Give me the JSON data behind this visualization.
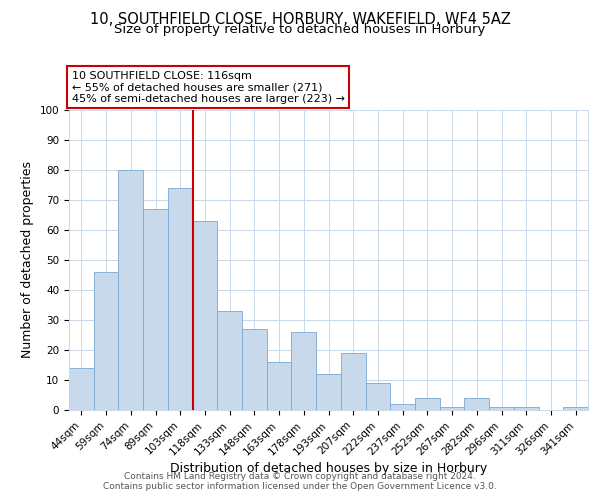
{
  "title": "10, SOUTHFIELD CLOSE, HORBURY, WAKEFIELD, WF4 5AZ",
  "subtitle": "Size of property relative to detached houses in Horbury",
  "xlabel": "Distribution of detached houses by size in Horbury",
  "ylabel": "Number of detached properties",
  "bar_labels": [
    "44sqm",
    "59sqm",
    "74sqm",
    "89sqm",
    "103sqm",
    "118sqm",
    "133sqm",
    "148sqm",
    "163sqm",
    "178sqm",
    "193sqm",
    "207sqm",
    "222sqm",
    "237sqm",
    "252sqm",
    "267sqm",
    "282sqm",
    "296sqm",
    "311sqm",
    "326sqm",
    "341sqm"
  ],
  "bar_values": [
    14,
    46,
    80,
    67,
    74,
    63,
    33,
    27,
    16,
    26,
    12,
    19,
    9,
    2,
    4,
    1,
    4,
    1,
    1,
    0,
    1
  ],
  "bar_color": "#c9d9ec",
  "bar_edge_color": "#7aa8d2",
  "vline_index": 5,
  "vline_color": "#cc0000",
  "ylim": [
    0,
    100
  ],
  "yticks": [
    0,
    10,
    20,
    30,
    40,
    50,
    60,
    70,
    80,
    90,
    100
  ],
  "annotation_title": "10 SOUTHFIELD CLOSE: 116sqm",
  "annotation_line1": "← 55% of detached houses are smaller (271)",
  "annotation_line2": "45% of semi-detached houses are larger (223) →",
  "annotation_box_color": "#ffffff",
  "annotation_box_edge": "#cc0000",
  "footer1": "Contains HM Land Registry data © Crown copyright and database right 2024.",
  "footer2": "Contains public sector information licensed under the Open Government Licence v3.0.",
  "bg_color": "#ffffff",
  "grid_color": "#c8d8e8",
  "title_fontsize": 10.5,
  "subtitle_fontsize": 9.5,
  "axis_label_fontsize": 9,
  "tick_fontsize": 7.5,
  "annotation_fontsize": 8,
  "footer_fontsize": 6.5
}
